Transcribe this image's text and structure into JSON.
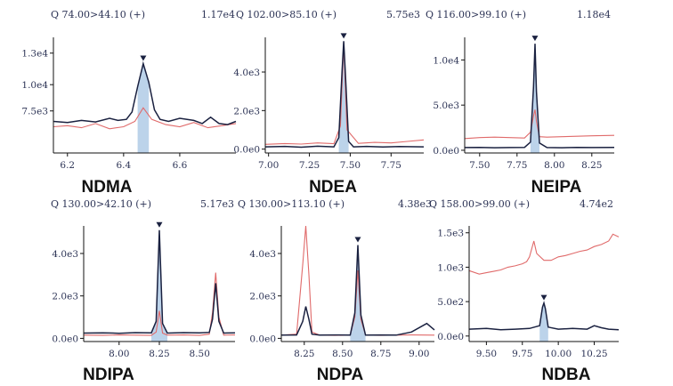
{
  "colors": {
    "target": "#1a2140",
    "reference": "#e06a6a",
    "fill": "#bcd3ea",
    "text": "#2c3355",
    "axis": "#111111"
  },
  "chart_data": [
    {
      "type": "line",
      "name": "NDMA",
      "header_left": "Q 74.00>44.10 (+)",
      "header_right": "1.17e4",
      "xlim": [
        6.15,
        6.8
      ],
      "ylim": [
        3500,
        14500
      ],
      "xticks": [
        6.2,
        6.4,
        6.6
      ],
      "xtick_labels": [
        "6.2",
        "6.4",
        "6.6"
      ],
      "yticks": [
        7500,
        10000,
        13000
      ],
      "ytick_labels": [
        "7.5e3",
        "1.0e4",
        "1.3e4"
      ],
      "peak_rt": 6.47,
      "series": [
        {
          "role": "target",
          "x": [
            6.15,
            6.2,
            6.25,
            6.3,
            6.35,
            6.38,
            6.41,
            6.43,
            6.45,
            6.47,
            6.49,
            6.51,
            6.53,
            6.56,
            6.6,
            6.65,
            6.68,
            6.71,
            6.74,
            6.77,
            6.8
          ],
          "y": [
            6500,
            6400,
            6600,
            6450,
            6800,
            6600,
            6700,
            7400,
            9800,
            12000,
            10200,
            7600,
            6700,
            6500,
            6800,
            6600,
            6300,
            6900,
            6300,
            6200,
            6500
          ]
        },
        {
          "role": "reference",
          "x": [
            6.15,
            6.2,
            6.25,
            6.3,
            6.35,
            6.4,
            6.44,
            6.47,
            6.5,
            6.55,
            6.6,
            6.65,
            6.7,
            6.75,
            6.8
          ],
          "y": [
            6000,
            6100,
            5900,
            6300,
            5800,
            6000,
            6500,
            7800,
            6700,
            6200,
            6000,
            6400,
            5900,
            6100,
            6300
          ]
        }
      ]
    },
    {
      "type": "line",
      "name": "NDEA",
      "header_left": "Q 102.00>85.10 (+)",
      "header_right": "5.75e3",
      "xlim": [
        6.98,
        7.95
      ],
      "ylim": [
        -200,
        5800
      ],
      "xticks": [
        7.0,
        7.25,
        7.5,
        7.75
      ],
      "xtick_labels": [
        "7.00",
        "7.25",
        "7.50",
        "7.75"
      ],
      "yticks": [
        0,
        2000,
        4000
      ],
      "ytick_labels": [
        "0.0e0",
        "2.0e3",
        "4.0e3"
      ],
      "peak_rt": 7.46,
      "series": [
        {
          "role": "target",
          "x": [
            6.98,
            7.1,
            7.2,
            7.3,
            7.4,
            7.43,
            7.45,
            7.46,
            7.47,
            7.49,
            7.52,
            7.6,
            7.7,
            7.8,
            7.95
          ],
          "y": [
            120,
            140,
            100,
            150,
            120,
            600,
            4000,
            5600,
            4000,
            400,
            120,
            140,
            110,
            130,
            120
          ]
        },
        {
          "role": "reference",
          "x": [
            6.98,
            7.1,
            7.2,
            7.3,
            7.4,
            7.44,
            7.46,
            7.48,
            7.55,
            7.65,
            7.75,
            7.85,
            7.95
          ],
          "y": [
            250,
            290,
            260,
            320,
            280,
            1200,
            5500,
            1000,
            300,
            350,
            320,
            400,
            480
          ]
        }
      ]
    },
    {
      "type": "line",
      "name": "NEIPA",
      "header_left": "Q 116.00>99.10 (+)",
      "header_right": "1.18e4",
      "xlim": [
        7.4,
        8.4
      ],
      "ylim": [
        -300,
        12500
      ],
      "xticks": [
        7.5,
        7.75,
        8.0,
        8.25
      ],
      "xtick_labels": [
        "7.50",
        "7.75",
        "8.00",
        "8.25"
      ],
      "yticks": [
        0,
        5000,
        10000
      ],
      "ytick_labels": [
        "0.0e0",
        "5.0e3",
        "1.0e4"
      ],
      "peak_rt": 7.87,
      "series": [
        {
          "role": "target",
          "x": [
            7.4,
            7.5,
            7.6,
            7.7,
            7.8,
            7.84,
            7.86,
            7.87,
            7.88,
            7.9,
            7.95,
            8.05,
            8.15,
            8.25,
            8.4
          ],
          "y": [
            300,
            320,
            280,
            300,
            320,
            900,
            7000,
            11800,
            6500,
            800,
            300,
            280,
            320,
            300,
            310
          ]
        },
        {
          "role": "reference",
          "x": [
            7.4,
            7.5,
            7.6,
            7.7,
            7.8,
            7.84,
            7.86,
            7.87,
            7.88,
            7.9,
            7.95,
            8.05,
            8.15,
            8.25,
            8.4
          ],
          "y": [
            1300,
            1400,
            1450,
            1400,
            1350,
            2000,
            3800,
            4500,
            3200,
            1500,
            1450,
            1500,
            1550,
            1600,
            1650
          ]
        }
      ]
    },
    {
      "type": "line",
      "name": "NDIPA",
      "header_left": "Q 130.00>42.10 (+)",
      "header_right": "5.17e3",
      "xlim": [
        7.78,
        8.72
      ],
      "ylim": [
        -150,
        5300
      ],
      "xticks": [
        8.0,
        8.25,
        8.5
      ],
      "xtick_labels": [
        "8.00",
        "8.25",
        "8.50"
      ],
      "yticks": [
        0,
        2000,
        4000
      ],
      "ytick_labels": [
        "0.0e0",
        "2.0e3",
        "4.0e3"
      ],
      "peak_rt": 8.25,
      "series": [
        {
          "role": "target",
          "x": [
            7.78,
            7.9,
            8.0,
            8.1,
            8.2,
            8.23,
            8.25,
            8.27,
            8.3,
            8.4,
            8.5,
            8.56,
            8.58,
            8.6,
            8.62,
            8.65,
            8.72
          ],
          "y": [
            250,
            260,
            240,
            270,
            260,
            800,
            5100,
            700,
            250,
            270,
            260,
            280,
            900,
            2600,
            800,
            250,
            260
          ]
        },
        {
          "role": "reference",
          "x": [
            7.78,
            7.9,
            8.0,
            8.1,
            8.2,
            8.23,
            8.25,
            8.27,
            8.3,
            8.4,
            8.5,
            8.56,
            8.58,
            8.6,
            8.62,
            8.65,
            8.72
          ],
          "y": [
            150,
            140,
            160,
            150,
            140,
            300,
            1300,
            250,
            150,
            160,
            140,
            200,
            1200,
            3100,
            1000,
            150,
            160
          ]
        }
      ]
    },
    {
      "type": "line",
      "name": "NDPA",
      "header_left": "Q 130.00>113.10 (+)",
      "header_right": "4.38e3",
      "xlim": [
        8.1,
        9.1
      ],
      "ylim": [
        -150,
        5300
      ],
      "xticks": [
        8.25,
        8.5,
        8.75,
        9.0
      ],
      "xtick_labels": [
        "8.25",
        "8.50",
        "8.75",
        "9.00"
      ],
      "yticks": [
        0,
        2000,
        4000
      ],
      "ytick_labels": [
        "0.0e0",
        "2.0e3",
        "4.0e3"
      ],
      "peak_rt": 8.6,
      "series": [
        {
          "role": "target",
          "x": [
            8.1,
            8.2,
            8.24,
            8.26,
            8.28,
            8.3,
            8.35,
            8.45,
            8.55,
            8.58,
            8.6,
            8.62,
            8.65,
            8.75,
            8.85,
            8.95,
            9.05,
            9.1
          ],
          "y": [
            150,
            160,
            800,
            1500,
            900,
            200,
            150,
            160,
            150,
            1200,
            4400,
            1100,
            150,
            160,
            150,
            300,
            700,
            400
          ]
        },
        {
          "role": "reference",
          "x": [
            8.1,
            8.2,
            8.24,
            8.26,
            8.28,
            8.3,
            8.35,
            8.45,
            8.55,
            8.58,
            8.6,
            8.62,
            8.65,
            8.75,
            8.85,
            8.95,
            9.1
          ],
          "y": [
            150,
            200,
            3500,
            5300,
            3000,
            300,
            150,
            140,
            150,
            1000,
            3200,
            900,
            150,
            140,
            150,
            160,
            150
          ]
        }
      ]
    },
    {
      "type": "line",
      "name": "NDBA",
      "header_left": "Q 158.00>99.00 (+)",
      "header_right": "4.74e2",
      "xlim": [
        9.38,
        10.42
      ],
      "ylim": [
        -80,
        1600
      ],
      "xticks": [
        9.5,
        9.75,
        10.0,
        10.25
      ],
      "xtick_labels": [
        "9.50",
        "9.75",
        "10.00",
        "10.25"
      ],
      "yticks": [
        0,
        500,
        1000,
        1500
      ],
      "ytick_labels": [
        "0.0e0",
        "5.0e2",
        "1.0e3",
        "1.5e3"
      ],
      "peak_rt": 9.9,
      "series": [
        {
          "role": "target",
          "x": [
            9.38,
            9.5,
            9.6,
            9.7,
            9.8,
            9.87,
            9.89,
            9.9,
            9.91,
            9.93,
            10.0,
            10.1,
            10.2,
            10.25,
            10.3,
            10.35,
            10.42
          ],
          "y": [
            100,
            110,
            90,
            100,
            110,
            150,
            420,
            480,
            400,
            130,
            100,
            110,
            100,
            150,
            120,
            100,
            90
          ]
        },
        {
          "role": "reference",
          "x": [
            9.38,
            9.45,
            9.5,
            9.55,
            9.6,
            9.65,
            9.7,
            9.75,
            9.78,
            9.8,
            9.83,
            9.85,
            9.9,
            9.95,
            10.0,
            10.05,
            10.1,
            10.15,
            10.2,
            10.25,
            10.3,
            10.35,
            10.38,
            10.42
          ],
          "y": [
            950,
            900,
            920,
            940,
            960,
            1000,
            1020,
            1050,
            1080,
            1150,
            1380,
            1200,
            1100,
            1100,
            1150,
            1170,
            1200,
            1230,
            1250,
            1300,
            1330,
            1380,
            1480,
            1440
          ]
        }
      ]
    }
  ]
}
